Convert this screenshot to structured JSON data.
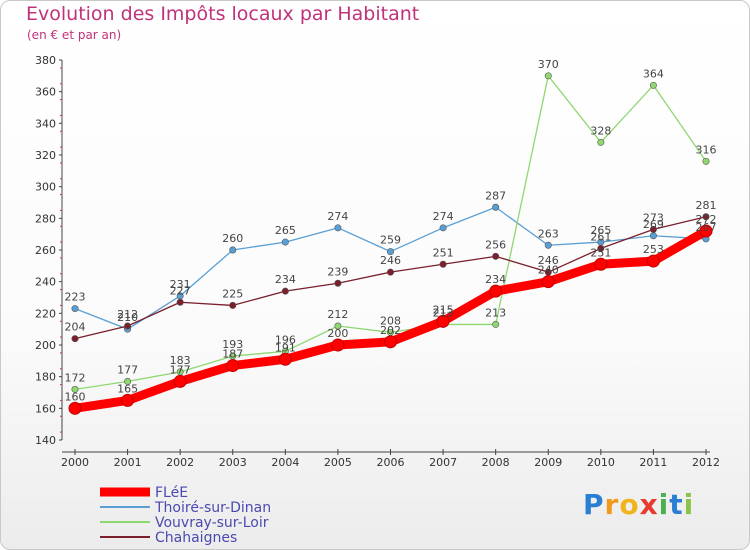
{
  "chart_data": {
    "type": "line",
    "title": "Evolution des Impôts locaux par Habitant",
    "subtitle": "(en € et par an)",
    "x": [
      "2000",
      "2001",
      "2002",
      "2003",
      "2004",
      "2005",
      "2006",
      "2007",
      "2008",
      "2009",
      "2010",
      "2011",
      "2012"
    ],
    "ylim": [
      140,
      380
    ],
    "yticks": [
      140,
      160,
      180,
      200,
      220,
      240,
      260,
      280,
      300,
      320,
      340,
      360,
      380
    ],
    "series": [
      {
        "name": "Thoiré-sur-Dinan",
        "color": "#5a9fd4",
        "values": [
          223,
          210,
          231,
          260,
          265,
          274,
          259,
          274,
          287,
          263,
          265,
          269,
          267
        ],
        "labels": [
          "223",
          "210",
          "231",
          "260",
          "265",
          "274",
          "259",
          "274",
          "287",
          "263",
          "265",
          "269",
          "267"
        ]
      },
      {
        "name": "Vouvray-sur-Loir",
        "color": "#8fd870",
        "values": [
          172,
          177,
          183,
          193,
          196,
          212,
          208,
          213,
          213,
          370,
          328,
          364,
          316
        ],
        "labels": [
          "172",
          "177",
          "183",
          "193",
          "196",
          "212",
          "208",
          "213",
          "213",
          "370",
          "328",
          "364",
          "316"
        ]
      },
      {
        "name": "Chahaignes",
        "color": "#7a1f2b",
        "values": [
          204,
          212,
          227,
          225,
          234,
          239,
          246,
          251,
          256,
          246,
          261,
          273,
          281
        ],
        "labels": [
          "204",
          "212",
          "227",
          "225",
          "234",
          "239",
          "246",
          "251",
          "256",
          "246",
          "261",
          "273",
          "281"
        ]
      },
      {
        "name": "FLéE",
        "color": "#ff0000",
        "values": [
          160,
          165,
          177,
          187,
          191,
          200,
          202,
          215,
          234,
          240,
          251,
          253,
          272
        ],
        "labels": [
          "160",
          "165",
          "177",
          "187",
          "191",
          "200",
          "202",
          "215",
          "234",
          "240",
          "251",
          "253",
          "272"
        ]
      }
    ],
    "legend": [
      {
        "name": "FLéE",
        "color": "#ff0000"
      },
      {
        "name": "Thoiré-sur-Dinan",
        "color": "#5a9fd4"
      },
      {
        "name": "Vouvray-sur-Loir",
        "color": "#8fd870"
      },
      {
        "name": "Chahaignes",
        "color": "#7a1f2b"
      }
    ],
    "legend_text_color": "#4a4ab0",
    "legend_position": "bottom-left",
    "grid": false
  },
  "logo": {
    "letters": [
      "P",
      "r",
      "o",
      "x",
      "i",
      "t",
      "i"
    ],
    "colors": [
      "#2a7fd4",
      "#f29a1d",
      "#f2b41d",
      "#e63b2e",
      "#4caf50",
      "#2a7fd4",
      "#8bc34a"
    ]
  }
}
